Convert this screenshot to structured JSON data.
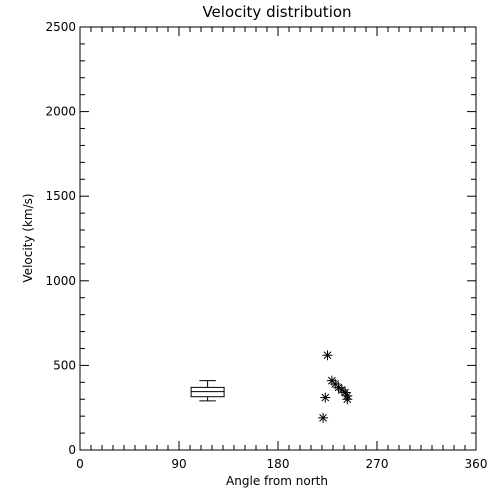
{
  "chart_data": {
    "type": "scatter",
    "title": "Velocity distribution",
    "xlabel": "Angle from north",
    "ylabel": "Velocity (km/s)",
    "xlim": [
      0,
      360
    ],
    "ylim": [
      0,
      2500
    ],
    "xticks": [
      0,
      90,
      180,
      270,
      360
    ],
    "xtick_labels": [
      "0",
      "90",
      "180",
      "270",
      "360"
    ],
    "yticks": [
      0,
      500,
      1000,
      1500,
      2000,
      2500
    ],
    "ytick_labels": [
      "0",
      "500",
      "1000",
      "1500",
      "2000",
      "2500"
    ],
    "grid": false,
    "series": [
      {
        "marker": "asterisk",
        "points": [
          {
            "x": 225,
            "y": 560
          },
          {
            "x": 229,
            "y": 410
          },
          {
            "x": 232,
            "y": 390
          },
          {
            "x": 235,
            "y": 370
          },
          {
            "x": 238,
            "y": 355
          },
          {
            "x": 241,
            "y": 340
          },
          {
            "x": 243,
            "y": 320
          },
          {
            "x": 243,
            "y": 300
          },
          {
            "x": 223,
            "y": 310
          },
          {
            "x": 221,
            "y": 190
          }
        ]
      }
    ],
    "boxplot": {
      "x": 116,
      "width": 30,
      "min": 290,
      "q1": 315,
      "median": 345,
      "q3": 370,
      "max": 410
    }
  },
  "colors": {
    "ink": "#000000",
    "background": "#ffffff"
  }
}
